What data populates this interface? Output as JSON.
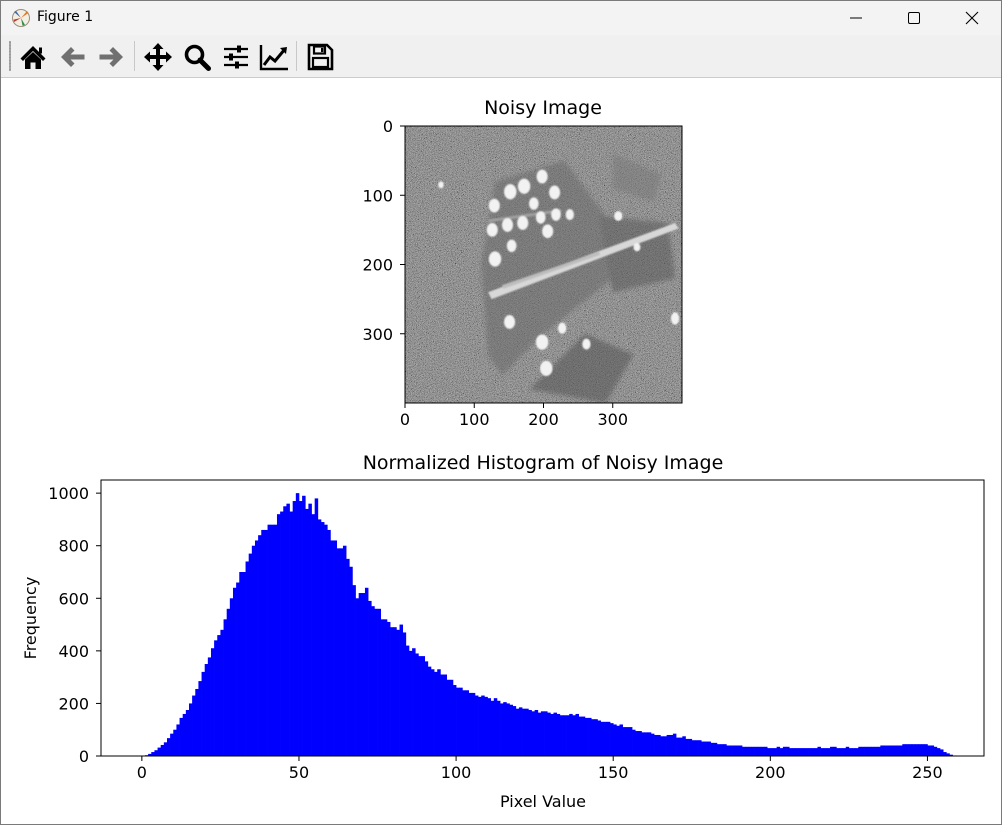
{
  "window": {
    "title": "Figure 1",
    "controls": {
      "minimize": "minimize-icon",
      "maximize": "maximize-icon",
      "close": "close-icon"
    }
  },
  "toolbar": {
    "buttons": [
      {
        "name": "home",
        "icon": "home-icon"
      },
      {
        "name": "back",
        "icon": "arrow-left-icon"
      },
      {
        "name": "forward",
        "icon": "arrow-right-icon"
      },
      {
        "name": "pan",
        "icon": "move-icon"
      },
      {
        "name": "zoom",
        "icon": "magnifier-icon"
      },
      {
        "name": "configure-subplots",
        "icon": "sliders-icon"
      },
      {
        "name": "edit-axis",
        "icon": "line-chart-icon"
      },
      {
        "name": "save",
        "icon": "floppy-disk-icon"
      }
    ]
  },
  "colors": {
    "bars": "#0000ff",
    "toolbar_icon": "#000000",
    "disabled_icon": "#707070"
  },
  "chart_data": [
    {
      "type": "image",
      "title": "Noisy Image",
      "xticks": [
        0,
        100,
        200,
        300
      ],
      "yticks": [
        0,
        100,
        200,
        300
      ],
      "xlim": [
        0,
        400
      ],
      "ylim": [
        400,
        0
      ],
      "colormap": "gray"
    },
    {
      "type": "bar",
      "title": "Normalized Histogram of Noisy Image",
      "xlabel": "Pixel Value",
      "ylabel": "Frequency",
      "xlim": [
        -13,
        268
      ],
      "ylim": [
        0,
        1050
      ],
      "xticks": [
        0,
        50,
        100,
        150,
        200,
        250
      ],
      "yticks": [
        0,
        200,
        400,
        600,
        800,
        1000
      ],
      "bin_start": 0,
      "bin_width": 1,
      "values": [
        0,
        3,
        8,
        15,
        22,
        32,
        42,
        52,
        68,
        85,
        100,
        120,
        145,
        160,
        175,
        200,
        230,
        255,
        285,
        320,
        350,
        375,
        410,
        440,
        460,
        480,
        520,
        560,
        600,
        640,
        660,
        700,
        700,
        740,
        770,
        800,
        820,
        840,
        860,
        860,
        880,
        880,
        880,
        920,
        930,
        950,
        960,
        930,
        970,
        1000,
        970,
        990,
        940,
        960,
        920,
        980,
        900,
        890,
        880,
        860,
        820,
        820,
        790,
        790,
        800,
        750,
        720,
        650,
        600,
        620,
        620,
        640,
        590,
        570,
        560,
        560,
        520,
        520,
        510,
        490,
        490,
        480,
        500,
        470,
        420,
        400,
        410,
        390,
        380,
        380,
        360,
        340,
        330,
        320,
        330,
        310,
        310,
        290,
        290,
        270,
        260,
        260,
        250,
        250,
        240,
        240,
        230,
        225,
        230,
        225,
        220,
        210,
        220,
        210,
        200,
        205,
        200,
        195,
        190,
        180,
        185,
        180,
        180,
        175,
        170,
        175,
        165,
        170,
        170,
        165,
        160,
        165,
        160,
        155,
        155,
        155,
        160,
        155,
        160,
        150,
        150,
        145,
        145,
        140,
        140,
        135,
        130,
        130,
        130,
        125,
        120,
        115,
        120,
        110,
        110,
        110,
        100,
        95,
        95,
        90,
        90,
        90,
        85,
        80,
        80,
        75,
        75,
        80,
        80,
        85,
        70,
        70,
        75,
        65,
        65,
        60,
        60,
        60,
        55,
        55,
        55,
        50,
        50,
        45,
        45,
        45,
        40,
        40,
        40,
        40,
        40,
        35,
        35,
        35,
        35,
        35,
        35,
        35,
        35,
        30,
        30,
        30,
        35,
        30,
        35,
        35,
        30,
        30,
        30,
        30,
        30,
        30,
        30,
        30,
        30,
        35,
        30,
        30,
        30,
        35,
        35,
        30,
        30,
        30,
        35,
        30,
        30,
        30,
        35,
        35,
        35,
        35,
        35,
        35,
        35,
        40,
        40,
        40,
        40,
        40,
        40,
        40,
        45,
        45,
        45,
        45,
        45,
        45,
        45,
        45,
        40,
        40,
        35,
        30,
        25,
        15,
        10,
        5,
        2,
        0,
        0,
        0,
        0,
        0,
        0
      ]
    }
  ]
}
